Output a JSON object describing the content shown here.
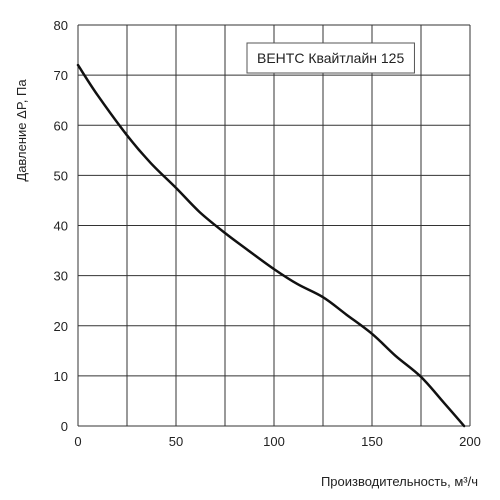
{
  "chart_data": {
    "type": "line",
    "title": "",
    "xlabel": "Производительность, м³/ч",
    "ylabel": "Давление ΔP, Па",
    "xlim": [
      0,
      200
    ],
    "ylim": [
      0,
      80
    ],
    "xticks": [
      0,
      50,
      100,
      150,
      200
    ],
    "yticks": [
      0,
      10,
      20,
      30,
      40,
      50,
      60,
      70,
      80
    ],
    "x_gridlines": [
      0,
      25,
      50,
      75,
      100,
      125,
      150,
      175,
      200
    ],
    "grid": true,
    "legend_position": "top-right",
    "series": [
      {
        "name": "ВЕНТС Квайтлайн 125",
        "color": "#111111",
        "x": [
          0,
          10,
          25,
          37,
          50,
          62,
          75,
          87,
          100,
          112,
          125,
          137,
          150,
          162,
          175,
          187,
          197
        ],
        "y": [
          72,
          66,
          58,
          52.5,
          47.5,
          42.7,
          38.5,
          35,
          31.3,
          28.3,
          25.7,
          22.2,
          18.4,
          14,
          9.8,
          4.5,
          0
        ]
      }
    ]
  }
}
